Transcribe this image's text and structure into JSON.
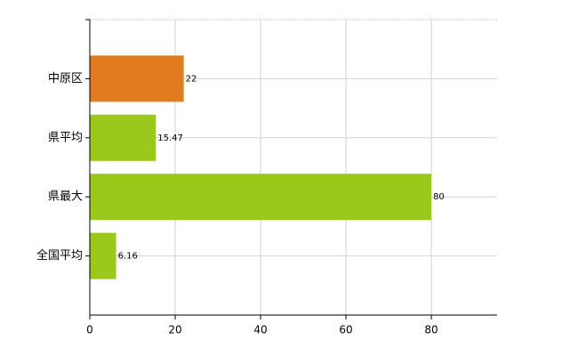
{
  "chart_data": {
    "type": "bar",
    "orientation": "horizontal",
    "categories": [
      "中原区",
      "県平均",
      "県最大",
      "全国平均"
    ],
    "values": [
      22,
      15.47,
      80,
      6.16
    ],
    "colors": [
      "#e07b1f",
      "#9bc91b",
      "#9bc91b",
      "#9bc91b"
    ],
    "xlim": [
      0,
      95.4
    ],
    "xticks": [
      0,
      20,
      40,
      60,
      80
    ],
    "grid": true
  }
}
